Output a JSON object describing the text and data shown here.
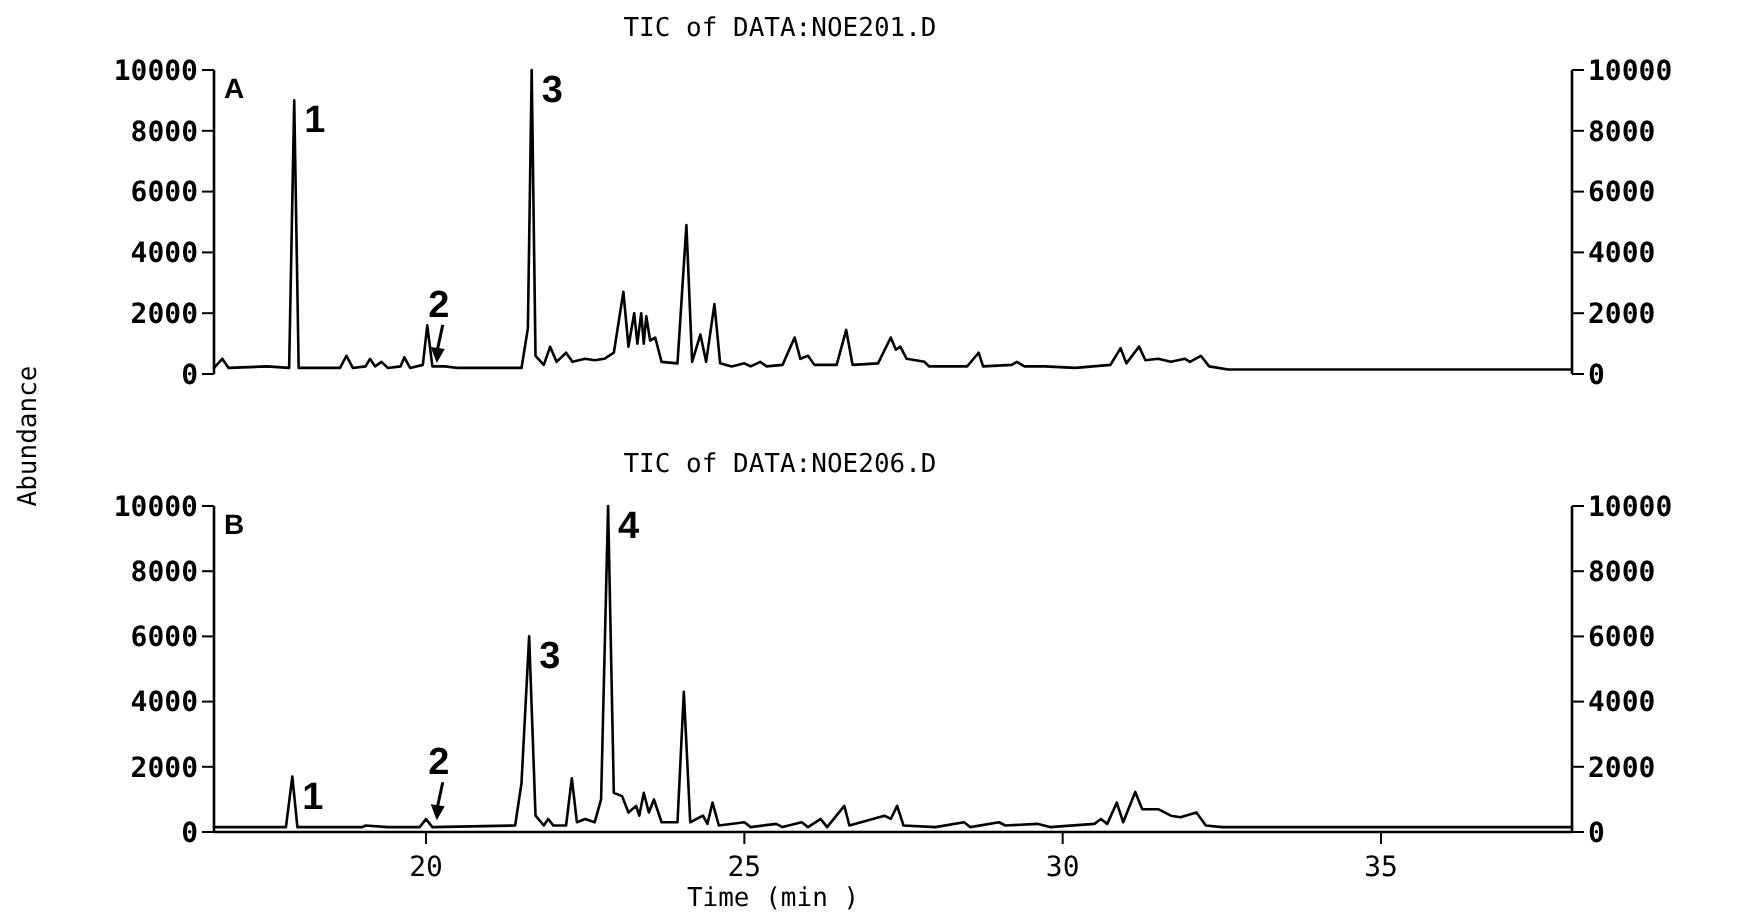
{
  "chart_data": [
    {
      "type": "line",
      "title": "TIC of DATA:NOE201.D",
      "ylabel": "Abundance",
      "xlim": [
        16.67,
        38.0
      ],
      "ylim": [
        0,
        10000
      ],
      "yticks": [
        0,
        2000,
        4000,
        6000,
        8000,
        10000
      ],
      "y2lim": [
        0,
        10000
      ],
      "y2ticks": [
        0,
        2000,
        4000,
        6000,
        8000,
        10000
      ],
      "tick_labels": "y",
      "series": [
        {
          "color": "#000000",
          "x": [
            16.67,
            16.8,
            16.9,
            17.5,
            17.85,
            17.93,
            18.0,
            18.65,
            18.75,
            18.85,
            19.05,
            19.12,
            19.2,
            19.3,
            19.4,
            19.6,
            19.66,
            19.75,
            19.95,
            20.02,
            20.1,
            20.3,
            20.5,
            21.5,
            21.6,
            21.66,
            21.72,
            21.85,
            21.95,
            22.05,
            22.2,
            22.3,
            22.5,
            22.65,
            22.8,
            22.95,
            23.1,
            23.18,
            23.27,
            23.32,
            23.38,
            23.42,
            23.46,
            23.52,
            23.6,
            23.7,
            23.95,
            24.09,
            24.18,
            24.31,
            24.4,
            24.53,
            24.62,
            24.8,
            25.0,
            25.1,
            25.25,
            25.35,
            25.6,
            25.79,
            25.88,
            26.0,
            26.1,
            26.45,
            26.6,
            26.7,
            27.1,
            27.3,
            27.38,
            27.45,
            27.55,
            27.83,
            27.9,
            28.5,
            28.68,
            28.75,
            29.2,
            29.28,
            29.4,
            29.72,
            30.2,
            30.75,
            30.91,
            31.0,
            31.2,
            31.3,
            31.5,
            31.7,
            31.92,
            32.0,
            32.17,
            32.3,
            32.6,
            38.0
          ],
          "values": [
            200,
            500,
            200,
            250,
            200,
            9000,
            200,
            200,
            600,
            200,
            250,
            500,
            250,
            400,
            200,
            250,
            550,
            200,
            300,
            1600,
            250,
            250,
            200,
            200,
            1500,
            10000,
            600,
            300,
            900,
            400,
            700,
            400,
            500,
            450,
            500,
            700,
            2700,
            900,
            2000,
            1000,
            2000,
            1000,
            1900,
            1100,
            1200,
            400,
            350,
            4900,
            400,
            1300,
            400,
            2300,
            350,
            250,
            350,
            250,
            400,
            250,
            300,
            1200,
            500,
            600,
            300,
            300,
            1450,
            300,
            350,
            1200,
            800,
            900,
            500,
            400,
            250,
            250,
            700,
            250,
            300,
            400,
            250,
            250,
            200,
            300,
            850,
            350,
            900,
            450,
            500,
            400,
            500,
            400,
            600,
            250,
            150,
            150
          ]
        }
      ],
      "annotations": [
        "A",
        {
          "text": "1",
          "x": 17.93,
          "y": 9000
        },
        {
          "text": "2",
          "x": 20.2,
          "y": 300
        },
        {
          "text": "3",
          "x": 21.66,
          "y": 10000
        }
      ]
    },
    {
      "type": "line",
      "title": "TIC of DATA:NOE206.D",
      "xlabel": "Time (min )",
      "xlim": [
        16.67,
        38.0
      ],
      "xticks": [
        20,
        25,
        30,
        35
      ],
      "ylim": [
        0,
        10000
      ],
      "yticks": [
        0,
        2000,
        4000,
        6000,
        8000,
        10000
      ],
      "y2lim": [
        0,
        10000
      ],
      "y2ticks": [
        0,
        2000,
        4000,
        6000,
        8000,
        10000
      ],
      "series": [
        {
          "color": "#000000",
          "x": [
            16.67,
            17.8,
            17.9,
            17.98,
            19.0,
            19.05,
            19.4,
            19.9,
            20.0,
            20.1,
            21.4,
            21.5,
            21.62,
            21.72,
            21.85,
            21.92,
            22.0,
            22.2,
            22.29,
            22.37,
            22.5,
            22.65,
            22.75,
            22.86,
            22.95,
            23.08,
            23.18,
            23.3,
            23.35,
            23.42,
            23.5,
            23.58,
            23.7,
            23.95,
            24.05,
            24.15,
            24.35,
            24.42,
            24.5,
            24.6,
            25.0,
            25.1,
            25.5,
            25.6,
            25.9,
            26.0,
            26.2,
            26.3,
            26.57,
            26.65,
            27.2,
            27.3,
            27.4,
            27.5,
            28.0,
            28.45,
            28.55,
            29.0,
            29.1,
            29.6,
            29.8,
            30.5,
            30.6,
            30.7,
            30.85,
            30.95,
            31.14,
            31.25,
            31.5,
            31.7,
            31.85,
            32.1,
            32.25,
            32.5,
            38.0
          ],
          "values": [
            150,
            150,
            1700,
            150,
            150,
            200,
            150,
            150,
            400,
            150,
            200,
            1500,
            6000,
            500,
            200,
            400,
            200,
            200,
            1650,
            300,
            400,
            300,
            1000,
            10000,
            1200,
            1100,
            600,
            800,
            500,
            1200,
            600,
            1000,
            300,
            300,
            4300,
            300,
            500,
            250,
            900,
            200,
            300,
            150,
            250,
            150,
            300,
            150,
            400,
            150,
            800,
            200,
            500,
            400,
            800,
            200,
            150,
            300,
            150,
            300,
            200,
            250,
            150,
            250,
            400,
            250,
            900,
            300,
            1230,
            700,
            700,
            500,
            450,
            600,
            200,
            150,
            150
          ]
        }
      ],
      "annotations": [
        "B",
        {
          "text": "1",
          "x": 17.9,
          "y": 1700
        },
        {
          "text": "2",
          "x": 20.2,
          "y": 300
        },
        {
          "text": "3",
          "x": 21.62,
          "y": 6000
        },
        {
          "text": "4",
          "x": 22.86,
          "y": 10000
        }
      ]
    }
  ]
}
